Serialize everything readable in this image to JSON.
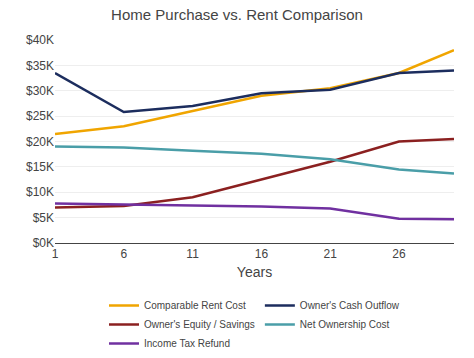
{
  "chart_data": {
    "type": "line",
    "title": "Home Purchase vs. Rent Comparison",
    "x_label": "Years",
    "x": [
      1,
      6,
      11,
      16,
      21,
      26,
      30
    ],
    "series": [
      {
        "name": "Comparable Rent Cost",
        "color": "#f0a500",
        "values": [
          21500,
          23000,
          26000,
          29000,
          30500,
          33500,
          38000
        ]
      },
      {
        "name": "Owner's Cash Outflow",
        "color": "#1c2d5e",
        "values": [
          33500,
          25800,
          27000,
          29500,
          30200,
          33500,
          34000
        ]
      },
      {
        "name": "Owner's Equity / Savings",
        "color": "#8b2020",
        "values": [
          7000,
          7300,
          9000,
          12500,
          16000,
          20000,
          20500
        ]
      },
      {
        "name": "Net Ownership Cost",
        "color": "#4a9ea8",
        "values": [
          19000,
          18800,
          18200,
          17600,
          16500,
          14500,
          13700
        ]
      },
      {
        "name": "Income Tax Refund",
        "color": "#7030a0",
        "values": [
          7800,
          7600,
          7400,
          7200,
          6800,
          4800,
          4700
        ]
      }
    ],
    "xlim": [
      1,
      30
    ],
    "xticks": [
      1,
      6,
      11,
      16,
      21,
      26
    ],
    "ylim": [
      0,
      40000
    ],
    "yticks": [
      {
        "value": 0,
        "label": "$0K"
      },
      {
        "value": 5000,
        "label": "$5K"
      },
      {
        "value": 10000,
        "label": "$10K"
      },
      {
        "value": 15000,
        "label": "$15K"
      },
      {
        "value": 20000,
        "label": "$20K"
      },
      {
        "value": 25000,
        "label": "$25K"
      },
      {
        "value": 30000,
        "label": "$30K"
      },
      {
        "value": 35000,
        "label": "$35K"
      },
      {
        "value": 40000,
        "label": "$40K"
      }
    ],
    "grid": "y",
    "legend": "bottom"
  }
}
